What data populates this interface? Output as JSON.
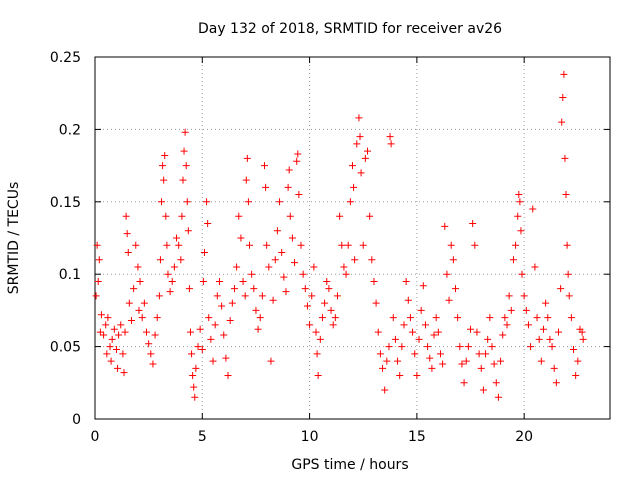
{
  "chart_data": {
    "type": "scatter",
    "title": "Day 132 of 2018, SRMTID for receiver av26",
    "xlabel": "GPS time / hours",
    "ylabel": "SRMTID / TECUs",
    "xlim": [
      0,
      24
    ],
    "ylim": [
      0,
      0.25
    ],
    "xticks": [
      0,
      5,
      10,
      15,
      20
    ],
    "yticks": [
      0,
      0.05,
      0.1,
      0.15,
      0.2,
      0.25
    ],
    "ytick_labels": [
      "0",
      "0.05",
      "0.1",
      "0.15",
      "0.2",
      "0.25"
    ],
    "grid": true,
    "marker": "+",
    "marker_color": "#ff0000",
    "series": [
      {
        "name": "av26",
        "points": [
          [
            0.05,
            0.085
          ],
          [
            0.1,
            0.12
          ],
          [
            0.15,
            0.095
          ],
          [
            0.2,
            0.11
          ],
          [
            0.25,
            0.06
          ],
          [
            0.3,
            0.072
          ],
          [
            0.4,
            0.058
          ],
          [
            0.5,
            0.065
          ],
          [
            0.55,
            0.045
          ],
          [
            0.6,
            0.07
          ],
          [
            0.7,
            0.05
          ],
          [
            0.75,
            0.04
          ],
          [
            0.8,
            0.055
          ],
          [
            0.9,
            0.062
          ],
          [
            1.0,
            0.048
          ],
          [
            1.05,
            0.035
          ],
          [
            1.1,
            0.058
          ],
          [
            1.2,
            0.065
          ],
          [
            1.3,
            0.045
          ],
          [
            1.35,
            0.032
          ],
          [
            1.4,
            0.06
          ],
          [
            1.45,
            0.14
          ],
          [
            1.5,
            0.128
          ],
          [
            1.55,
            0.115
          ],
          [
            1.6,
            0.08
          ],
          [
            1.7,
            0.068
          ],
          [
            1.8,
            0.09
          ],
          [
            1.9,
            0.12
          ],
          [
            2.0,
            0.105
          ],
          [
            2.05,
            0.075
          ],
          [
            2.1,
            0.095
          ],
          [
            2.2,
            0.07
          ],
          [
            2.3,
            0.08
          ],
          [
            2.4,
            0.06
          ],
          [
            2.5,
            0.052
          ],
          [
            2.6,
            0.045
          ],
          [
            2.7,
            0.038
          ],
          [
            2.8,
            0.058
          ],
          [
            2.9,
            0.07
          ],
          [
            3.0,
            0.085
          ],
          [
            3.05,
            0.11
          ],
          [
            3.1,
            0.15
          ],
          [
            3.15,
            0.175
          ],
          [
            3.2,
            0.165
          ],
          [
            3.25,
            0.182
          ],
          [
            3.3,
            0.14
          ],
          [
            3.35,
            0.12
          ],
          [
            3.4,
            0.1
          ],
          [
            3.5,
            0.088
          ],
          [
            3.6,
            0.095
          ],
          [
            3.7,
            0.105
          ],
          [
            3.8,
            0.125
          ],
          [
            3.9,
            0.12
          ],
          [
            4.0,
            0.11
          ],
          [
            4.05,
            0.14
          ],
          [
            4.1,
            0.165
          ],
          [
            4.15,
            0.185
          ],
          [
            4.2,
            0.198
          ],
          [
            4.25,
            0.175
          ],
          [
            4.3,
            0.15
          ],
          [
            4.35,
            0.13
          ],
          [
            4.4,
            0.09
          ],
          [
            4.45,
            0.06
          ],
          [
            4.5,
            0.045
          ],
          [
            4.55,
            0.03
          ],
          [
            4.6,
            0.022
          ],
          [
            4.65,
            0.015
          ],
          [
            4.7,
            0.035
          ],
          [
            4.8,
            0.05
          ],
          [
            4.9,
            0.062
          ],
          [
            5.0,
            0.048
          ],
          [
            5.05,
            0.095
          ],
          [
            5.1,
            0.115
          ],
          [
            5.2,
            0.15
          ],
          [
            5.25,
            0.135
          ],
          [
            5.3,
            0.07
          ],
          [
            5.4,
            0.055
          ],
          [
            5.5,
            0.04
          ],
          [
            5.6,
            0.065
          ],
          [
            5.7,
            0.085
          ],
          [
            5.8,
            0.095
          ],
          [
            5.9,
            0.078
          ],
          [
            6.0,
            0.058
          ],
          [
            6.1,
            0.042
          ],
          [
            6.2,
            0.03
          ],
          [
            6.3,
            0.068
          ],
          [
            6.4,
            0.08
          ],
          [
            6.5,
            0.09
          ],
          [
            6.6,
            0.105
          ],
          [
            6.7,
            0.14
          ],
          [
            6.8,
            0.125
          ],
          [
            6.9,
            0.095
          ],
          [
            7.0,
            0.085
          ],
          [
            7.05,
            0.165
          ],
          [
            7.1,
            0.18
          ],
          [
            7.15,
            0.15
          ],
          [
            7.2,
            0.12
          ],
          [
            7.3,
            0.1
          ],
          [
            7.4,
            0.09
          ],
          [
            7.5,
            0.075
          ],
          [
            7.6,
            0.062
          ],
          [
            7.7,
            0.07
          ],
          [
            7.8,
            0.085
          ],
          [
            7.9,
            0.175
          ],
          [
            7.95,
            0.16
          ],
          [
            8.0,
            0.12
          ],
          [
            8.1,
            0.105
          ],
          [
            8.2,
            0.04
          ],
          [
            8.3,
            0.082
          ],
          [
            8.4,
            0.11
          ],
          [
            8.5,
            0.13
          ],
          [
            8.6,
            0.15
          ],
          [
            8.7,
            0.115
          ],
          [
            8.8,
            0.098
          ],
          [
            8.9,
            0.088
          ],
          [
            9.0,
            0.16
          ],
          [
            9.05,
            0.172
          ],
          [
            9.1,
            0.14
          ],
          [
            9.2,
            0.125
          ],
          [
            9.3,
            0.108
          ],
          [
            9.4,
            0.178
          ],
          [
            9.45,
            0.183
          ],
          [
            9.5,
            0.155
          ],
          [
            9.6,
            0.12
          ],
          [
            9.7,
            0.1
          ],
          [
            9.8,
            0.09
          ],
          [
            9.9,
            0.078
          ],
          [
            10.0,
            0.065
          ],
          [
            10.1,
            0.085
          ],
          [
            10.2,
            0.105
          ],
          [
            10.3,
            0.06
          ],
          [
            10.35,
            0.045
          ],
          [
            10.4,
            0.03
          ],
          [
            10.5,
            0.055
          ],
          [
            10.6,
            0.07
          ],
          [
            10.7,
            0.08
          ],
          [
            10.8,
            0.095
          ],
          [
            10.9,
            0.09
          ],
          [
            11.0,
            0.075
          ],
          [
            11.1,
            0.065
          ],
          [
            11.2,
            0.07
          ],
          [
            11.3,
            0.085
          ],
          [
            11.4,
            0.14
          ],
          [
            11.5,
            0.12
          ],
          [
            11.6,
            0.105
          ],
          [
            11.7,
            0.1
          ],
          [
            11.8,
            0.12
          ],
          [
            11.9,
            0.15
          ],
          [
            12.0,
            0.175
          ],
          [
            12.05,
            0.16
          ],
          [
            12.1,
            0.11
          ],
          [
            12.2,
            0.19
          ],
          [
            12.3,
            0.208
          ],
          [
            12.35,
            0.195
          ],
          [
            12.4,
            0.17
          ],
          [
            12.5,
            0.12
          ],
          [
            12.6,
            0.18
          ],
          [
            12.7,
            0.185
          ],
          [
            12.8,
            0.14
          ],
          [
            12.9,
            0.11
          ],
          [
            13.0,
            0.095
          ],
          [
            13.1,
            0.08
          ],
          [
            13.2,
            0.06
          ],
          [
            13.3,
            0.045
          ],
          [
            13.4,
            0.035
          ],
          [
            13.5,
            0.02
          ],
          [
            13.6,
            0.04
          ],
          [
            13.7,
            0.05
          ],
          [
            13.75,
            0.195
          ],
          [
            13.8,
            0.19
          ],
          [
            13.9,
            0.07
          ],
          [
            14.0,
            0.055
          ],
          [
            14.1,
            0.04
          ],
          [
            14.2,
            0.03
          ],
          [
            14.3,
            0.05
          ],
          [
            14.4,
            0.065
          ],
          [
            14.5,
            0.095
          ],
          [
            14.6,
            0.082
          ],
          [
            14.7,
            0.07
          ],
          [
            14.8,
            0.06
          ],
          [
            14.9,
            0.045
          ],
          [
            15.0,
            0.03
          ],
          [
            15.1,
            0.055
          ],
          [
            15.2,
            0.075
          ],
          [
            15.3,
            0.092
          ],
          [
            15.4,
            0.065
          ],
          [
            15.5,
            0.05
          ],
          [
            15.6,
            0.042
          ],
          [
            15.7,
            0.035
          ],
          [
            15.8,
            0.058
          ],
          [
            15.9,
            0.07
          ],
          [
            16.0,
            0.06
          ],
          [
            16.1,
            0.045
          ],
          [
            16.2,
            0.038
          ],
          [
            16.3,
            0.133
          ],
          [
            16.4,
            0.1
          ],
          [
            16.5,
            0.082
          ],
          [
            16.6,
            0.12
          ],
          [
            16.7,
            0.11
          ],
          [
            16.8,
            0.09
          ],
          [
            16.9,
            0.07
          ],
          [
            17.0,
            0.05
          ],
          [
            17.1,
            0.038
          ],
          [
            17.2,
            0.025
          ],
          [
            17.3,
            0.04
          ],
          [
            17.4,
            0.05
          ],
          [
            17.5,
            0.062
          ],
          [
            17.6,
            0.135
          ],
          [
            17.7,
            0.12
          ],
          [
            17.8,
            0.06
          ],
          [
            17.9,
            0.045
          ],
          [
            18.0,
            0.035
          ],
          [
            18.1,
            0.02
          ],
          [
            18.2,
            0.045
          ],
          [
            18.3,
            0.055
          ],
          [
            18.4,
            0.07
          ],
          [
            18.5,
            0.05
          ],
          [
            18.6,
            0.038
          ],
          [
            18.7,
            0.025
          ],
          [
            18.8,
            0.015
          ],
          [
            18.9,
            0.04
          ],
          [
            19.0,
            0.058
          ],
          [
            19.1,
            0.07
          ],
          [
            19.2,
            0.065
          ],
          [
            19.3,
            0.085
          ],
          [
            19.4,
            0.075
          ],
          [
            19.5,
            0.11
          ],
          [
            19.6,
            0.12
          ],
          [
            19.7,
            0.14
          ],
          [
            19.75,
            0.155
          ],
          [
            19.8,
            0.15
          ],
          [
            19.85,
            0.13
          ],
          [
            19.9,
            0.1
          ],
          [
            20.0,
            0.085
          ],
          [
            20.1,
            0.075
          ],
          [
            20.2,
            0.065
          ],
          [
            20.3,
            0.05
          ],
          [
            20.4,
            0.145
          ],
          [
            20.5,
            0.105
          ],
          [
            20.6,
            0.07
          ],
          [
            20.7,
            0.055
          ],
          [
            20.8,
            0.04
          ],
          [
            20.9,
            0.062
          ],
          [
            21.0,
            0.08
          ],
          [
            21.1,
            0.07
          ],
          [
            21.2,
            0.055
          ],
          [
            21.3,
            0.05
          ],
          [
            21.4,
            0.035
          ],
          [
            21.5,
            0.025
          ],
          [
            21.6,
            0.06
          ],
          [
            21.7,
            0.09
          ],
          [
            21.75,
            0.205
          ],
          [
            21.8,
            0.222
          ],
          [
            21.85,
            0.238
          ],
          [
            21.9,
            0.18
          ],
          [
            21.95,
            0.155
          ],
          [
            22.0,
            0.12
          ],
          [
            22.05,
            0.1
          ],
          [
            22.1,
            0.085
          ],
          [
            22.2,
            0.07
          ],
          [
            22.3,
            0.048
          ],
          [
            22.4,
            0.03
          ],
          [
            22.5,
            0.04
          ],
          [
            22.6,
            0.062
          ],
          [
            22.7,
            0.06
          ],
          [
            22.75,
            0.055
          ]
        ]
      }
    ]
  }
}
